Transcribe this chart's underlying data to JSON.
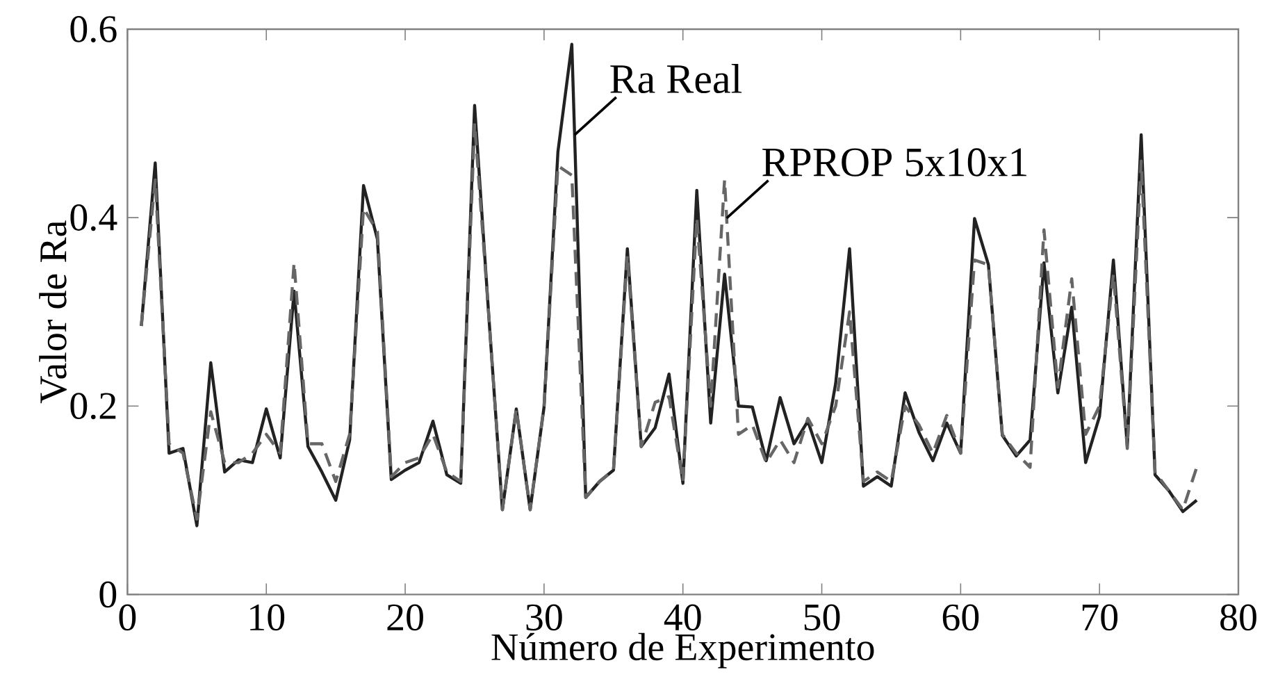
{
  "chart_data": {
    "type": "line",
    "xlabel": "Número de Experimento",
    "ylabel": "Valor de Ra",
    "x": [
      1,
      2,
      3,
      4,
      5,
      6,
      7,
      8,
      9,
      10,
      11,
      12,
      13,
      14,
      15,
      16,
      17,
      18,
      19,
      20,
      21,
      22,
      23,
      24,
      25,
      26,
      27,
      28,
      29,
      30,
      31,
      32,
      33,
      34,
      35,
      36,
      37,
      38,
      39,
      40,
      41,
      42,
      43,
      44,
      45,
      46,
      47,
      48,
      49,
      50,
      51,
      52,
      53,
      54,
      55,
      56,
      57,
      58,
      59,
      60,
      61,
      62,
      63,
      64,
      65,
      66,
      67,
      68,
      69,
      70,
      71,
      72,
      73,
      74,
      75,
      76,
      77
    ],
    "series": [
      {
        "name": "Ra Real",
        "color": "#222222",
        "line_style": "solid",
        "values": [
          0.285,
          0.458,
          0.15,
          0.155,
          0.073,
          0.246,
          0.13,
          0.143,
          0.14,
          0.197,
          0.145,
          0.322,
          0.157,
          0.13,
          0.1,
          0.164,
          0.434,
          0.377,
          0.122,
          0.132,
          0.14,
          0.184,
          0.127,
          0.118,
          0.519,
          0.3,
          0.09,
          0.197,
          0.09,
          0.199,
          0.47,
          0.584,
          0.103,
          0.12,
          0.132,
          0.367,
          0.157,
          0.177,
          0.234,
          0.118,
          0.429,
          0.182,
          0.34,
          0.2,
          0.199,
          0.142,
          0.209,
          0.16,
          0.184,
          0.14,
          0.224,
          0.367,
          0.115,
          0.125,
          0.115,
          0.214,
          0.172,
          0.142,
          0.182,
          0.15,
          0.399,
          0.35,
          0.169,
          0.147,
          0.164,
          0.352,
          0.214,
          0.305,
          0.14,
          0.189,
          0.355,
          0.157,
          0.488,
          0.127,
          0.11,
          0.088,
          0.1
        ]
      },
      {
        "name": "RPROP 5x10x1",
        "color": "#666666",
        "line_style": "dashed",
        "values": [
          0.285,
          0.44,
          0.16,
          0.15,
          0.08,
          0.194,
          0.14,
          0.14,
          0.15,
          0.17,
          0.15,
          0.352,
          0.16,
          0.16,
          0.12,
          0.17,
          0.41,
          0.385,
          0.125,
          0.14,
          0.145,
          0.17,
          0.13,
          0.12,
          0.5,
          0.3,
          0.09,
          0.197,
          0.09,
          0.2,
          0.455,
          0.445,
          0.103,
          0.12,
          0.132,
          0.36,
          0.157,
          0.204,
          0.21,
          0.12,
          0.4,
          0.2,
          0.44,
          0.17,
          0.18,
          0.14,
          0.164,
          0.14,
          0.187,
          0.16,
          0.2,
          0.3,
          0.12,
          0.13,
          0.12,
          0.2,
          0.18,
          0.15,
          0.19,
          0.15,
          0.355,
          0.35,
          0.17,
          0.15,
          0.135,
          0.387,
          0.22,
          0.335,
          0.17,
          0.2,
          0.34,
          0.155,
          0.46,
          0.13,
          0.11,
          0.09,
          0.135
        ]
      }
    ],
    "xlim": [
      0,
      80
    ],
    "xticks": [
      0,
      10,
      20,
      30,
      40,
      50,
      60,
      70,
      80
    ],
    "ylim": [
      0,
      0.6
    ],
    "yticks": [
      0,
      0.2,
      0.4,
      0.6
    ],
    "grid": false,
    "marker": "none"
  }
}
